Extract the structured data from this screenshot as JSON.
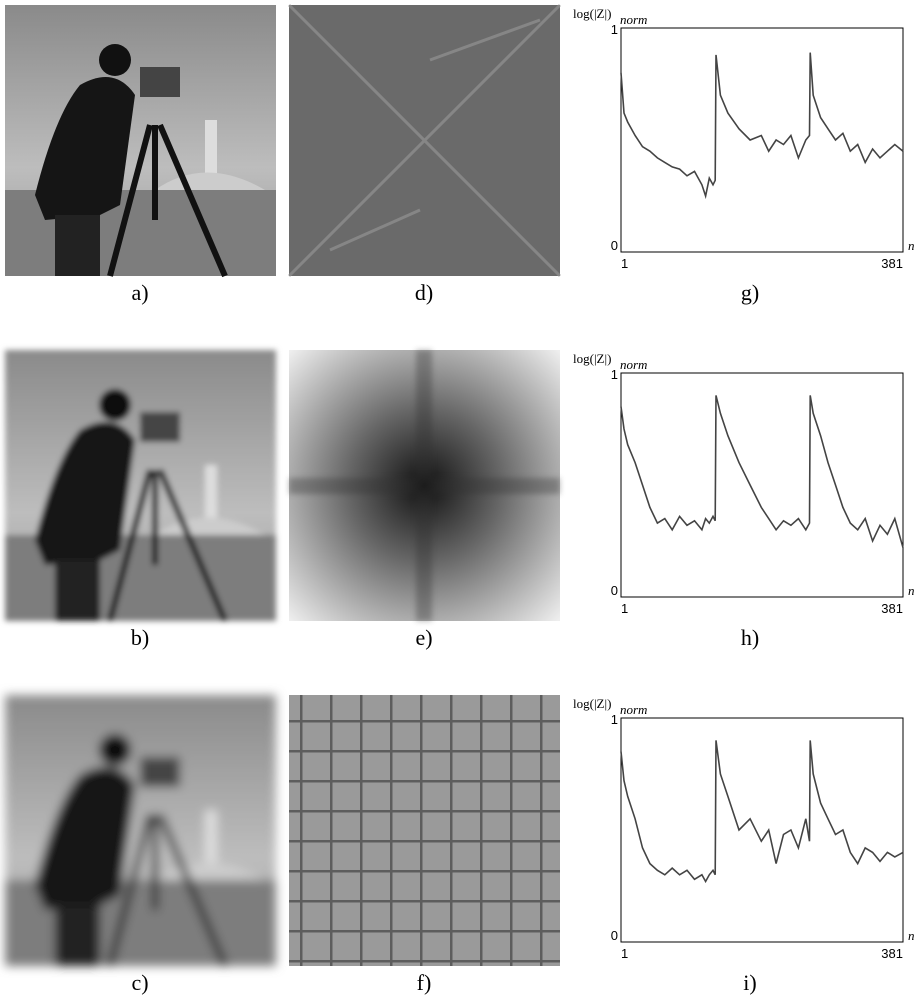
{
  "figure": {
    "captions": [
      "a)",
      "d)",
      "g)",
      "b)",
      "e)",
      "h)",
      "c)",
      "f)",
      "i)"
    ]
  },
  "chart_data": [
    {
      "type": "line",
      "ylabel": "log(|Z|)",
      "ylabel_sub": "norm",
      "xlabel": "n",
      "xlim": [
        1,
        381
      ],
      "xticks": [
        1,
        381
      ],
      "ylim": [
        0,
        1
      ],
      "yticks": [
        0,
        1
      ],
      "color": "#444444",
      "x": [
        1,
        5,
        10,
        20,
        30,
        40,
        50,
        60,
        70,
        80,
        90,
        100,
        110,
        115,
        120,
        125,
        128,
        129,
        135,
        145,
        160,
        175,
        190,
        200,
        210,
        220,
        230,
        240,
        250,
        255,
        256,
        260,
        270,
        280,
        290,
        300,
        310,
        320,
        330,
        340,
        350,
        360,
        370,
        381
      ],
      "values": [
        0.8,
        0.62,
        0.58,
        0.52,
        0.47,
        0.45,
        0.42,
        0.4,
        0.38,
        0.37,
        0.34,
        0.36,
        0.3,
        0.25,
        0.33,
        0.3,
        0.32,
        0.88,
        0.7,
        0.62,
        0.55,
        0.5,
        0.52,
        0.45,
        0.5,
        0.48,
        0.52,
        0.42,
        0.5,
        0.52,
        0.89,
        0.7,
        0.6,
        0.55,
        0.5,
        0.53,
        0.45,
        0.48,
        0.4,
        0.46,
        0.42,
        0.45,
        0.48,
        0.45
      ]
    },
    {
      "type": "line",
      "ylabel": "log(|Z|)",
      "ylabel_sub": "norm",
      "xlabel": "n",
      "xlim": [
        1,
        381
      ],
      "xticks": [
        1,
        381
      ],
      "ylim": [
        0,
        1
      ],
      "yticks": [
        0,
        1
      ],
      "color": "#444444",
      "x": [
        1,
        5,
        10,
        20,
        30,
        40,
        50,
        60,
        70,
        80,
        90,
        100,
        110,
        115,
        120,
        125,
        128,
        129,
        135,
        145,
        160,
        175,
        190,
        200,
        210,
        220,
        230,
        240,
        250,
        255,
        256,
        260,
        270,
        280,
        290,
        300,
        310,
        320,
        330,
        340,
        350,
        360,
        370,
        381
      ],
      "values": [
        0.85,
        0.75,
        0.68,
        0.6,
        0.5,
        0.4,
        0.33,
        0.35,
        0.3,
        0.36,
        0.32,
        0.34,
        0.3,
        0.35,
        0.33,
        0.36,
        0.34,
        0.9,
        0.82,
        0.72,
        0.6,
        0.5,
        0.4,
        0.35,
        0.3,
        0.34,
        0.32,
        0.35,
        0.3,
        0.33,
        0.9,
        0.82,
        0.72,
        0.6,
        0.5,
        0.4,
        0.33,
        0.3,
        0.35,
        0.25,
        0.32,
        0.28,
        0.35,
        0.22
      ]
    },
    {
      "type": "line",
      "ylabel": "log(|Z|)",
      "ylabel_sub": "norm",
      "xlabel": "n",
      "xlim": [
        1,
        381
      ],
      "xticks": [
        1,
        381
      ],
      "ylim": [
        0,
        1
      ],
      "yticks": [
        0,
        1
      ],
      "color": "#444444",
      "x": [
        1,
        5,
        10,
        20,
        30,
        40,
        50,
        60,
        70,
        80,
        90,
        100,
        110,
        115,
        120,
        125,
        128,
        129,
        135,
        145,
        160,
        175,
        190,
        200,
        210,
        220,
        230,
        240,
        250,
        255,
        256,
        260,
        270,
        280,
        290,
        300,
        310,
        320,
        330,
        340,
        350,
        360,
        370,
        381
      ],
      "values": [
        0.85,
        0.72,
        0.65,
        0.55,
        0.42,
        0.35,
        0.32,
        0.3,
        0.33,
        0.3,
        0.32,
        0.28,
        0.3,
        0.27,
        0.3,
        0.32,
        0.3,
        0.9,
        0.75,
        0.65,
        0.5,
        0.55,
        0.45,
        0.5,
        0.35,
        0.48,
        0.5,
        0.42,
        0.55,
        0.45,
        0.9,
        0.75,
        0.62,
        0.55,
        0.48,
        0.5,
        0.4,
        0.35,
        0.42,
        0.4,
        0.36,
        0.4,
        0.38,
        0.4
      ]
    }
  ]
}
